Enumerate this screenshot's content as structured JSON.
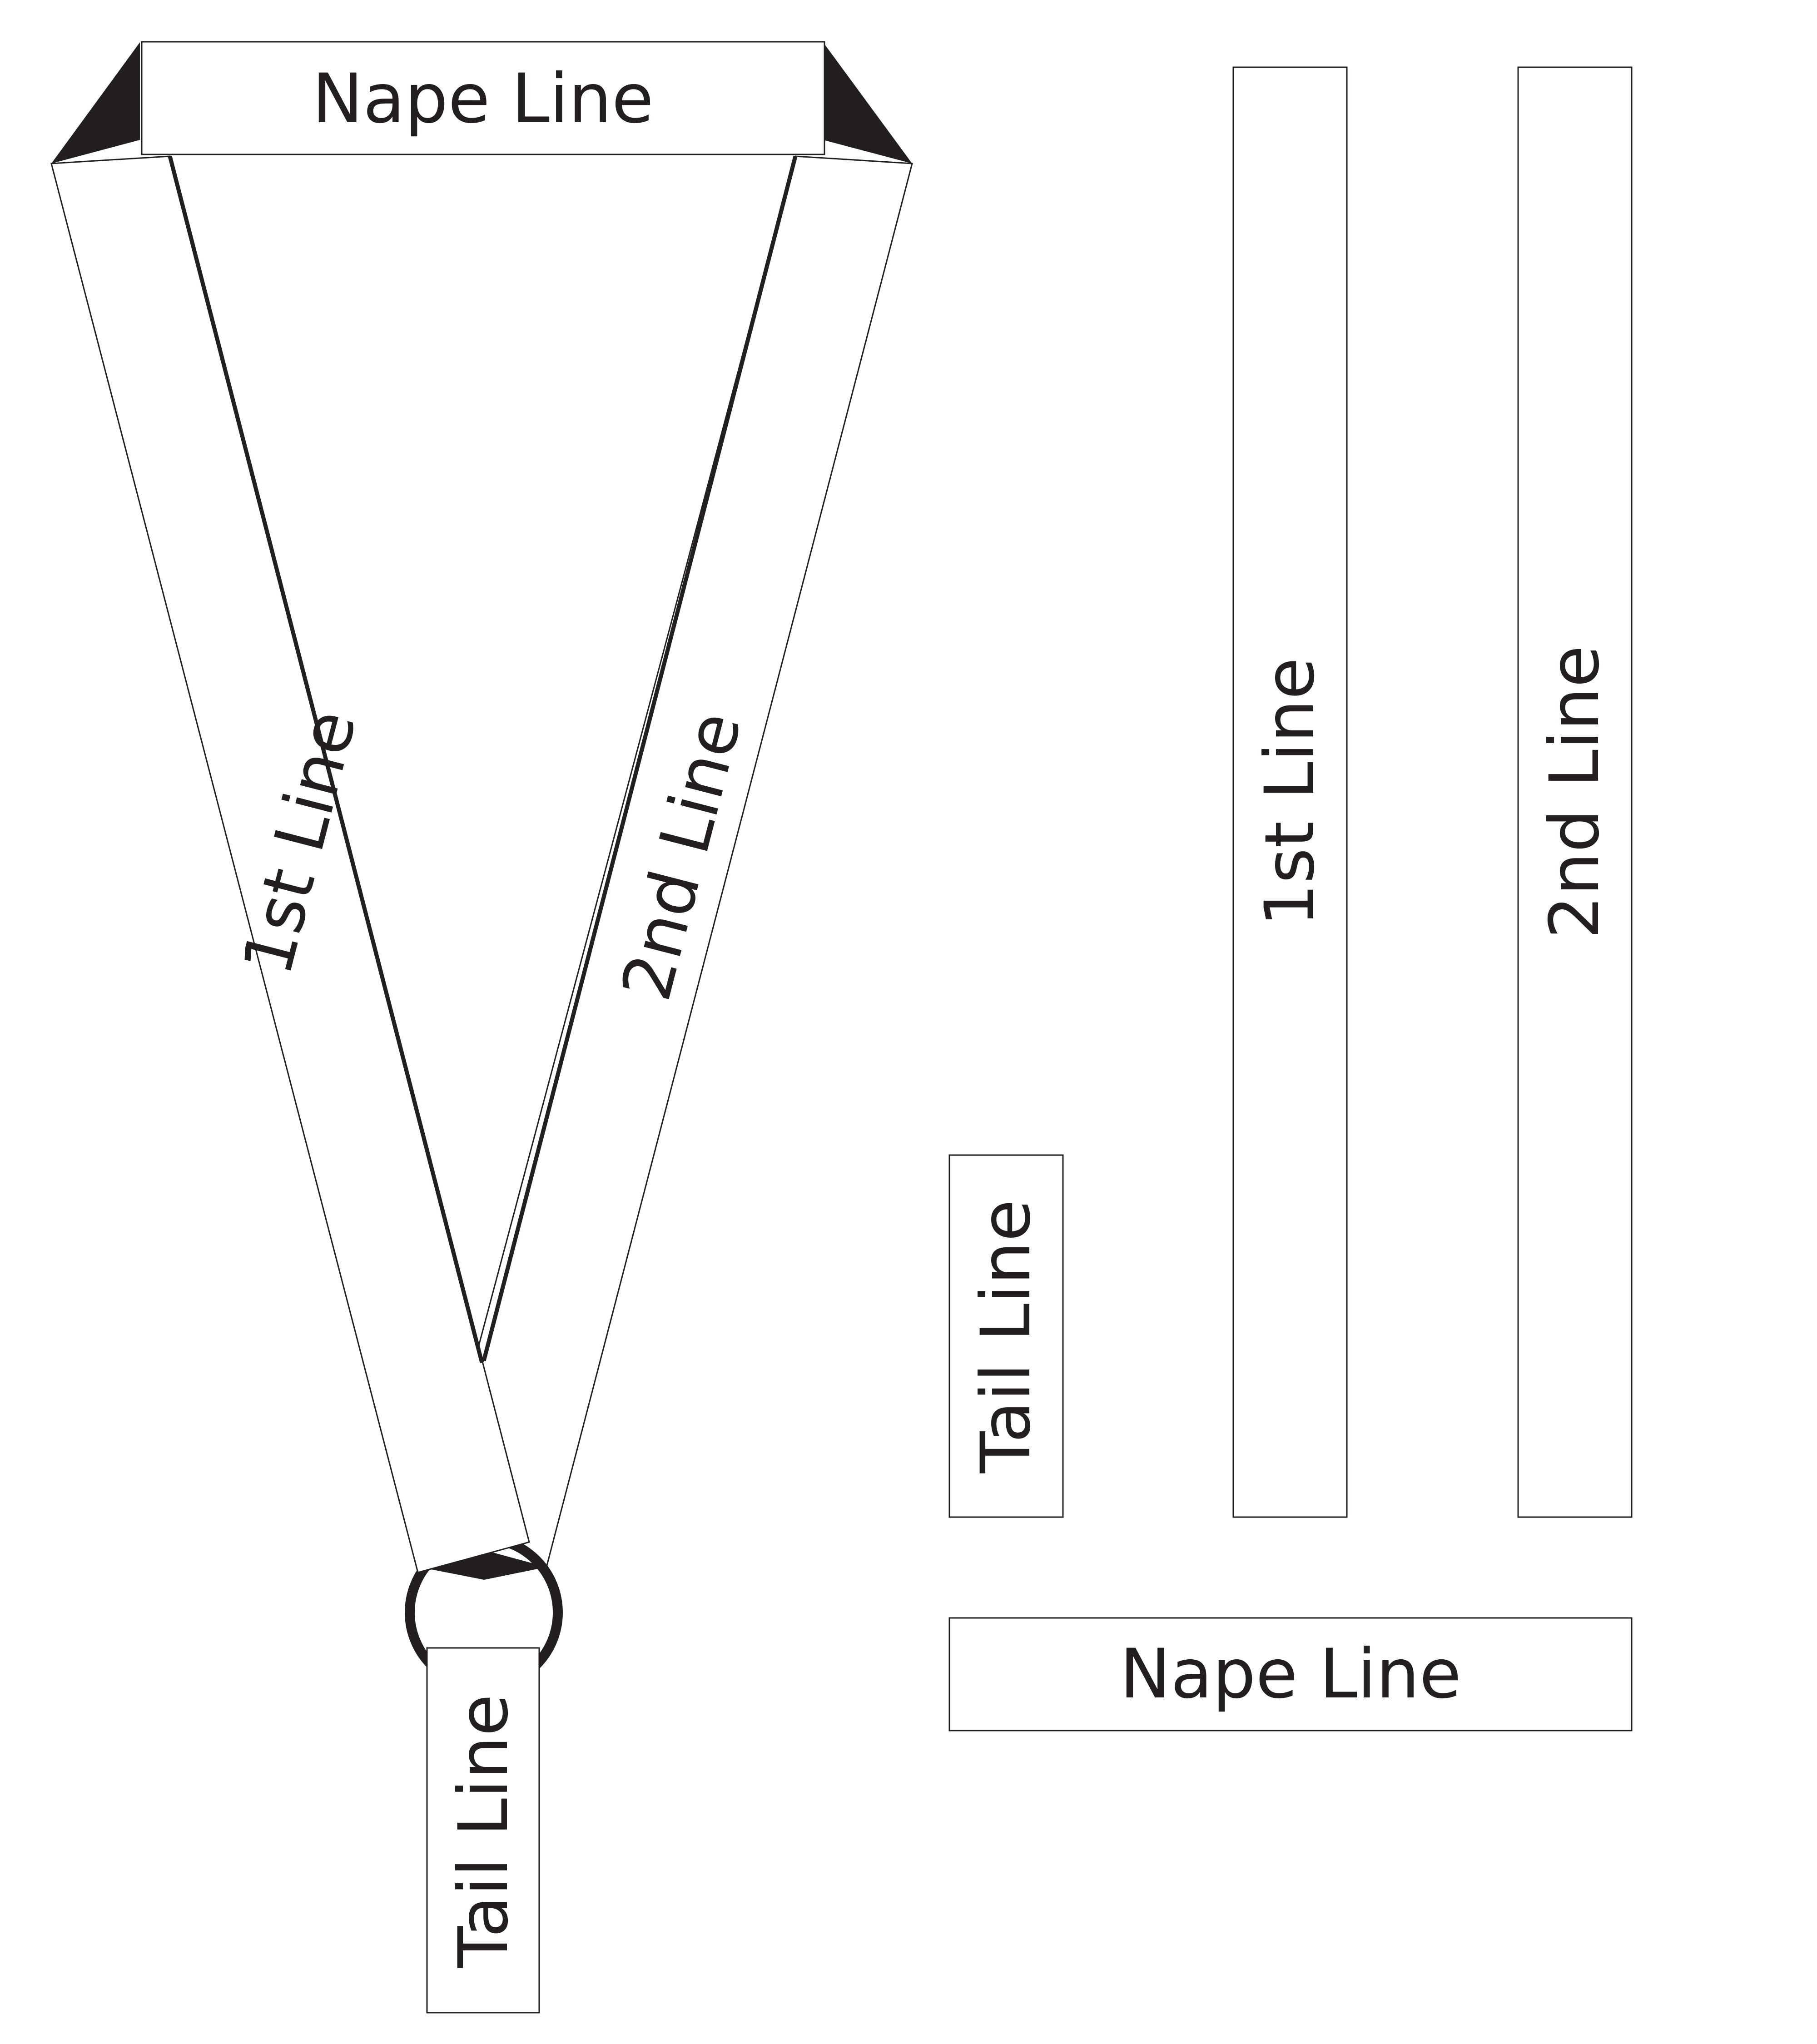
{
  "lanyard": {
    "nape_label": "Nape Line",
    "first_label": "1st Line",
    "second_label": "2nd Line",
    "tail_label": "Tail Line"
  },
  "separate_pieces": {
    "tail_label": "Tail Line",
    "first_label": "1st Line",
    "second_label": "2nd Line",
    "nape_label": "Nape Line"
  },
  "colors": {
    "line": "#231f20",
    "fill": "#ffffff"
  }
}
